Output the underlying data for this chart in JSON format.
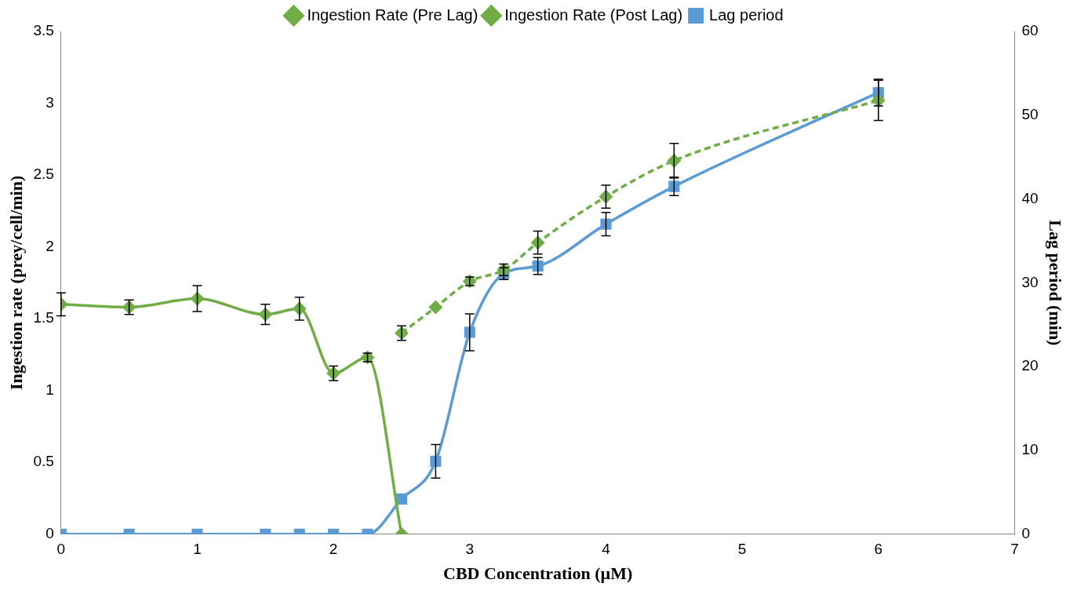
{
  "chart_data": {
    "type": "line",
    "xlabel": "CBD Concentration (µM)",
    "ylabel": "Ingestion rate (prey/cell/min)",
    "y2label": "Lag period (min)",
    "xlim": [
      0,
      7
    ],
    "xticks": [
      0,
      1,
      2,
      3,
      4,
      5,
      6,
      7
    ],
    "ylim": [
      0,
      3.5
    ],
    "yticks": [
      0,
      0.5,
      1,
      1.5,
      2,
      2.5,
      3,
      3.5
    ],
    "y2lim": [
      0,
      60
    ],
    "y2ticks": [
      0,
      10,
      20,
      30,
      40,
      50,
      60
    ],
    "legend": "top",
    "grid": false,
    "series": [
      {
        "name": "Ingestion Rate (Pre Lag)",
        "color": "#70ad47",
        "marker": "diamond",
        "line_style": "solid",
        "x": [
          0,
          0.5,
          1,
          1.5,
          1.75,
          2,
          2.25,
          2.5
        ],
        "values": [
          1.6,
          1.58,
          1.64,
          1.53,
          1.57,
          1.12,
          1.23,
          0
        ],
        "errors": [
          0.08,
          0.05,
          0.09,
          0.07,
          0.08,
          0.05,
          0.03,
          null
        ]
      },
      {
        "name": "Ingestion Rate (Post Lag)",
        "color": "#70ad47",
        "marker": "diamond",
        "line_style": "dashed",
        "x": [
          2.5,
          2.75,
          3,
          3.25,
          3.5,
          4,
          4.5,
          6
        ],
        "values": [
          1.4,
          1.58,
          1.76,
          1.84,
          2.03,
          2.35,
          2.6,
          3.02
        ],
        "errors": [
          0.05,
          null,
          0.03,
          0.04,
          0.08,
          0.08,
          0.12,
          0.14
        ]
      },
      {
        "name": "Lag period",
        "color": "#5b9bd5",
        "marker": "square",
        "line_style": "solid",
        "axis": "y2",
        "x": [
          0,
          0.5,
          1,
          1.5,
          1.75,
          2,
          2.25,
          2.5,
          2.75,
          3,
          3.25,
          3.5,
          4,
          4.5,
          6
        ],
        "values": [
          0,
          0,
          0,
          0,
          0,
          0,
          0,
          4.2,
          8.7,
          24.1,
          31.1,
          32,
          37,
          41.5,
          52.7
        ],
        "errors": [
          null,
          null,
          null,
          null,
          null,
          null,
          null,
          null,
          2,
          2.2,
          0.7,
          1,
          1.4,
          1.1,
          1.6
        ]
      }
    ]
  }
}
